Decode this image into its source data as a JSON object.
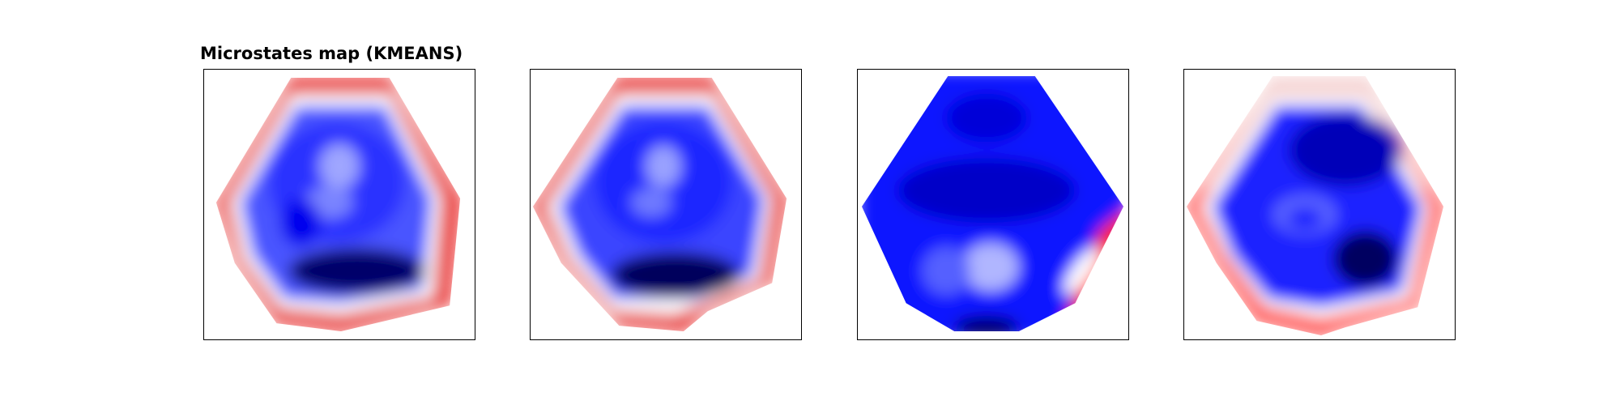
{
  "figure": {
    "title": "Microstates map (KMEANS)"
  },
  "colormap": {
    "name": "seismic",
    "negative": "#00005a",
    "mid_negative": "#0000ff",
    "zero": "#ffffff",
    "mid_positive": "#ff0000",
    "positive": "#800000"
  },
  "chart_data": [
    {
      "type": "heatmap",
      "name": "",
      "title": "Microstates map (KMEANS)",
      "grid": false,
      "axes": "hidden",
      "description_values": {
        "head_region": "predominantly negative (blue)",
        "rim": "positive (red) along upper and lower edges and sides",
        "darkest_negative": "lower-center"
      }
    },
    {
      "type": "heatmap",
      "name": "",
      "title": "",
      "grid": false,
      "axes": "hidden",
      "description_values": {
        "head_region": "predominantly negative (blue)",
        "rim": "positive (red) along upper and lower edges and left side",
        "darkest_negative": "lower-center"
      }
    },
    {
      "type": "heatmap",
      "name": "",
      "title": "",
      "grid": false,
      "axes": "hidden",
      "description_values": {
        "head_region": "almost entirely negative (blue)",
        "rim": "positive (red) only at lower-right edge",
        "lighter_spot": "lower-center"
      }
    },
    {
      "type": "heatmap",
      "name": "",
      "title": "",
      "grid": false,
      "axes": "hidden",
      "description_values": {
        "head_region": "predominantly negative (blue)",
        "rim": "positive (red) along lower-left and lower-right edges, faint at top",
        "darkest_negative": "lower-right"
      }
    }
  ]
}
